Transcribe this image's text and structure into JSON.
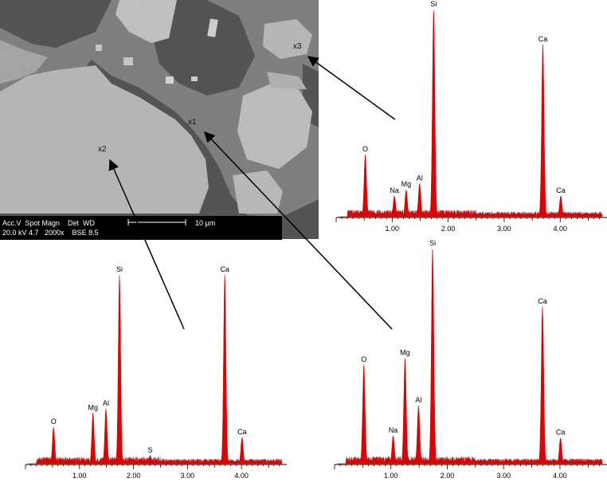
{
  "sem": {
    "markers": [
      "x1",
      "x2",
      "x3"
    ],
    "info_row1": "Acc.V  Spot Magn    Det  WD",
    "info_row2": "20.0 kV 4.7   2000x    BSE 8.5",
    "scale_label": "10 µm",
    "colors": {
      "background": "#7f7f7f",
      "crystal": "#c2c2c2",
      "matrix": "#474747"
    }
  },
  "chart_data": [
    {
      "type": "line",
      "panel": "x3",
      "x": [
        1.0,
        2.0,
        3.0,
        4.0
      ],
      "tick_labels": [
        "1.00",
        "2.00",
        "3.00",
        "4.00"
      ],
      "xlim": [
        0.0,
        4.75
      ],
      "ylim": [
        0,
        100
      ],
      "peaks": [
        {
          "label": "O",
          "x": 0.52,
          "y": 30
        },
        {
          "label": "Na",
          "x": 1.04,
          "y": 10
        },
        {
          "label": "Mg",
          "x": 1.25,
          "y": 13
        },
        {
          "label": "Al",
          "x": 1.49,
          "y": 16
        },
        {
          "label": "Si",
          "x": 1.74,
          "y": 100
        },
        {
          "label": "Ca",
          "x": 3.69,
          "y": 83
        },
        {
          "label": "Ca",
          "x": 4.01,
          "y": 10
        }
      ]
    },
    {
      "type": "line",
      "panel": "x2",
      "x": [
        1.0,
        2.0,
        3.0,
        4.0
      ],
      "tick_labels": [
        "1.00",
        "2.00",
        "3.00",
        "4.00"
      ],
      "xlim": [
        0.0,
        4.75
      ],
      "ylim": [
        0,
        100
      ],
      "peaks": [
        {
          "label": "O",
          "x": 0.52,
          "y": 18
        },
        {
          "label": "Mg",
          "x": 1.25,
          "y": 25
        },
        {
          "label": "Al",
          "x": 1.49,
          "y": 27
        },
        {
          "label": "Si",
          "x": 1.74,
          "y": 93
        },
        {
          "label": "S",
          "x": 2.31,
          "y": 4
        },
        {
          "label": "Ca",
          "x": 3.69,
          "y": 93
        },
        {
          "label": "Ca",
          "x": 4.01,
          "y": 13
        }
      ]
    },
    {
      "type": "line",
      "panel": "x1",
      "x": [
        1.0,
        2.0,
        3.0,
        4.0
      ],
      "tick_labels": [
        "1.00",
        "2.00",
        "3.00",
        "4.00"
      ],
      "xlim": [
        0.0,
        4.75
      ],
      "ylim": [
        0,
        100
      ],
      "peaks": [
        {
          "label": "O",
          "x": 0.52,
          "y": 46
        },
        {
          "label": "Na",
          "x": 1.04,
          "y": 13
        },
        {
          "label": "Mg",
          "x": 1.25,
          "y": 49
        },
        {
          "label": "Al",
          "x": 1.49,
          "y": 27
        },
        {
          "label": "Si",
          "x": 1.74,
          "y": 100
        },
        {
          "label": "Ca",
          "x": 3.69,
          "y": 73
        },
        {
          "label": "Ca",
          "x": 4.01,
          "y": 12
        }
      ]
    }
  ]
}
